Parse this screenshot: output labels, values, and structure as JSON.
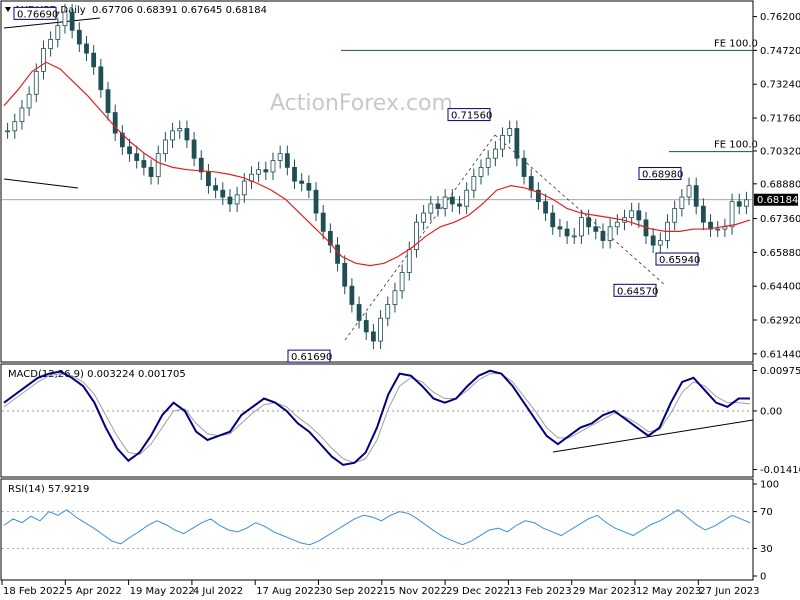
{
  "header": {
    "symbol": "AUDUSD,Daily",
    "ohlc": "0.67706 0.68391 0.67645 0.68184"
  },
  "watermark": "ActionForex.com",
  "colors": {
    "candle": "#1f4f55",
    "ma": "#e02020",
    "macd_main": "#000080",
    "macd_signal": "#a0a0a0",
    "rsi": "#3a8ee0",
    "grid": "#000000",
    "price_line": "#888888"
  },
  "chart_data": [
    {
      "type": "candlestick",
      "title": "AUDUSD,Daily",
      "x_tick_labels": [
        "18 Feb 2022",
        "5 Apr 2022",
        "19 May 2022",
        "4 Jul 2022",
        "17 Aug 2022",
        "30 Sep 2022",
        "15 Nov 2022",
        "29 Dec 2022",
        "13 Feb 2023",
        "29 Mar 2023",
        "12 May 2023",
        "27 Jun 2023"
      ],
      "y_tick_labels": [
        "0.76200",
        "0.74720",
        "0.73240",
        "0.71760",
        "0.70320",
        "0.68880",
        "0.67360",
        "0.65880",
        "0.64400",
        "0.62920",
        "0.61440"
      ],
      "ylim": [
        0.6117,
        0.7675
      ],
      "current_price": "0.68184",
      "close_approx": [
        0.712,
        0.716,
        0.722,
        0.728,
        0.738,
        0.748,
        0.752,
        0.758,
        0.764,
        0.756,
        0.75,
        0.746,
        0.74,
        0.73,
        0.72,
        0.711,
        0.705,
        0.702,
        0.699,
        0.696,
        0.692,
        0.702,
        0.708,
        0.712,
        0.713,
        0.708,
        0.7,
        0.694,
        0.688,
        0.686,
        0.683,
        0.68,
        0.684,
        0.69,
        0.693,
        0.695,
        0.694,
        0.699,
        0.702,
        0.696,
        0.69,
        0.689,
        0.686,
        0.676,
        0.668,
        0.662,
        0.654,
        0.644,
        0.636,
        0.629,
        0.624,
        0.62,
        0.63,
        0.636,
        0.642,
        0.65,
        0.66,
        0.672,
        0.676,
        0.68,
        0.678,
        0.683,
        0.68,
        0.679,
        0.686,
        0.692,
        0.696,
        0.7,
        0.704,
        0.71,
        0.713,
        0.7,
        0.692,
        0.686,
        0.681,
        0.676,
        0.67,
        0.669,
        0.666,
        0.666,
        0.674,
        0.67,
        0.668,
        0.664,
        0.67,
        0.672,
        0.674,
        0.677,
        0.673,
        0.666,
        0.662,
        0.664,
        0.672,
        0.678,
        0.683,
        0.688,
        0.679,
        0.672,
        0.669,
        0.669,
        0.67,
        0.681,
        0.679,
        0.6818
      ],
      "ma_approx": [
        0.723,
        0.73,
        0.738,
        0.742,
        0.739,
        0.733,
        0.727,
        0.72,
        0.713,
        0.707,
        0.702,
        0.698,
        0.696,
        0.695,
        0.6945,
        0.694,
        0.693,
        0.6915,
        0.689,
        0.686,
        0.682,
        0.676,
        0.67,
        0.664,
        0.657,
        0.654,
        0.653,
        0.654,
        0.657,
        0.661,
        0.666,
        0.67,
        0.672,
        0.675,
        0.68,
        0.686,
        0.688,
        0.687,
        0.685,
        0.682,
        0.678,
        0.676,
        0.675,
        0.674,
        0.673,
        0.671,
        0.669,
        0.668,
        0.668,
        0.669,
        0.669,
        0.67,
        0.671,
        0.673
      ],
      "annotations": [
        {
          "label": "0.76690",
          "value": 0.7669
        },
        {
          "label": "0.71560",
          "value": 0.7156
        },
        {
          "label": "0.61690",
          "value": 0.6169
        },
        {
          "label": "0.68980",
          "value": 0.6898
        },
        {
          "label": "0.65940",
          "value": 0.6594
        },
        {
          "label": "0.64570",
          "value": 0.6457
        }
      ],
      "levels": [
        {
          "label": "FE 100.0",
          "value": 0.7472
        },
        {
          "label": "FE 100.0",
          "value": 0.7029
        }
      ]
    },
    {
      "type": "line",
      "title": "MACD(12,26,9) 0.003224 0.001705",
      "y_tick_labels": [
        "0.009751",
        "0.00",
        "-0.014107"
      ],
      "ylim": [
        -0.0152,
        0.0106
      ],
      "series": [
        {
          "name": "MACD",
          "values": [
            0.002,
            0.004,
            0.006,
            0.008,
            0.009,
            0.0095,
            0.008,
            0.006,
            0.002,
            -0.004,
            -0.009,
            -0.012,
            -0.01,
            -0.006,
            -0.001,
            0.002,
            0.0,
            -0.005,
            -0.007,
            -0.006,
            -0.005,
            -0.001,
            0.001,
            0.003,
            0.002,
            0.0,
            -0.003,
            -0.005,
            -0.008,
            -0.011,
            -0.013,
            -0.0125,
            -0.01,
            -0.004,
            0.004,
            0.009,
            0.0085,
            0.006,
            0.003,
            0.002,
            0.003,
            0.006,
            0.0085,
            0.0097,
            0.009,
            0.006,
            0.002,
            -0.002,
            -0.006,
            -0.008,
            -0.006,
            -0.004,
            -0.003,
            -0.001,
            0.0,
            -0.002,
            -0.004,
            -0.006,
            -0.004,
            0.002,
            0.007,
            0.008,
            0.005,
            0.002,
            0.001,
            0.003,
            0.003
          ]
        },
        {
          "name": "Signal",
          "values": [
            0.001,
            0.003,
            0.005,
            0.007,
            0.0085,
            0.009,
            0.0085,
            0.007,
            0.004,
            -0.001,
            -0.006,
            -0.01,
            -0.0105,
            -0.008,
            -0.004,
            0.0,
            0.0005,
            -0.003,
            -0.0055,
            -0.006,
            -0.0055,
            -0.003,
            -0.0005,
            0.0015,
            0.002,
            0.001,
            -0.0015,
            -0.0035,
            -0.006,
            -0.009,
            -0.0115,
            -0.0125,
            -0.0115,
            -0.007,
            0.0005,
            0.006,
            0.008,
            0.007,
            0.0045,
            0.003,
            0.003,
            0.005,
            0.0075,
            0.009,
            0.009,
            0.007,
            0.0035,
            0.0,
            -0.004,
            -0.0065,
            -0.0065,
            -0.005,
            -0.0035,
            -0.002,
            -0.0005,
            -0.0015,
            -0.003,
            -0.005,
            -0.0045,
            -0.0005,
            0.0045,
            0.007,
            0.006,
            0.0035,
            0.002,
            0.002,
            0.0017
          ]
        }
      ]
    },
    {
      "type": "line",
      "title": "RSI(14) 57.9219",
      "y_tick_labels": [
        "100",
        "70",
        "30",
        "0"
      ],
      "ylim": [
        0,
        100
      ],
      "series": [
        {
          "name": "RSI",
          "values": [
            55,
            62,
            58,
            65,
            60,
            70,
            66,
            72,
            64,
            58,
            52,
            45,
            38,
            35,
            42,
            48,
            55,
            60,
            56,
            50,
            46,
            52,
            58,
            62,
            55,
            50,
            48,
            52,
            58,
            54,
            48,
            44,
            40,
            36,
            34,
            38,
            44,
            50,
            56,
            62,
            66,
            64,
            60,
            66,
            70,
            68,
            62,
            55,
            48,
            42,
            38,
            34,
            38,
            44,
            50,
            52,
            48,
            55,
            60,
            58,
            52,
            48,
            44,
            50,
            56,
            62,
            66,
            58,
            52,
            48,
            44,
            50,
            56,
            60,
            66,
            72,
            64,
            56,
            50,
            54,
            60,
            66,
            62,
            57.9
          ]
        }
      ]
    }
  ]
}
